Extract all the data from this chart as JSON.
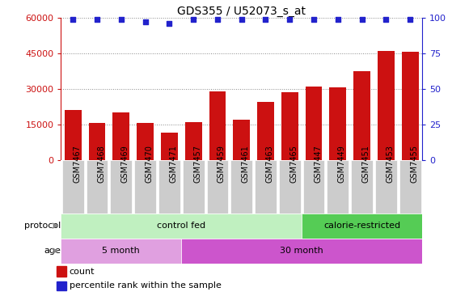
{
  "title": "GDS355 / U52073_s_at",
  "samples": [
    "GSM7467",
    "GSM7468",
    "GSM7469",
    "GSM7470",
    "GSM7471",
    "GSM7457",
    "GSM7459",
    "GSM7461",
    "GSM7463",
    "GSM7465",
    "GSM7447",
    "GSM7449",
    "GSM7451",
    "GSM7453",
    "GSM7455"
  ],
  "counts": [
    21000,
    15500,
    20000,
    15500,
    11500,
    16000,
    29000,
    17000,
    24500,
    28500,
    31000,
    30500,
    37500,
    46000,
    45500
  ],
  "percentiles": [
    99,
    99,
    99,
    97,
    96,
    99,
    99,
    99,
    99,
    99,
    99,
    99,
    99,
    99,
    99
  ],
  "ylim_left": [
    0,
    60000
  ],
  "ylim_right": [
    0,
    100
  ],
  "yticks_left": [
    0,
    15000,
    30000,
    45000,
    60000
  ],
  "yticks_right": [
    0,
    25,
    50,
    75,
    100
  ],
  "bar_color": "#cc1111",
  "dot_color": "#2222cc",
  "bg_color": "#ffffff",
  "xticklabel_bg": "#cccccc",
  "protocol_groups": [
    {
      "label": "control fed",
      "start": 0,
      "end": 10,
      "color": "#c0f0c0"
    },
    {
      "label": "calorie-restricted",
      "start": 10,
      "end": 15,
      "color": "#55cc55"
    }
  ],
  "age_groups": [
    {
      "label": "5 month",
      "start": 0,
      "end": 5,
      "color": "#e0a0e0"
    },
    {
      "label": "30 month",
      "start": 5,
      "end": 15,
      "color": "#cc55cc"
    }
  ],
  "protocol_label": "protocol",
  "age_label": "age",
  "legend_count_label": "count",
  "legend_pct_label": "percentile rank within the sample",
  "gridline_color": "#888888",
  "gridline_ticks": [
    15000,
    30000,
    45000
  ]
}
